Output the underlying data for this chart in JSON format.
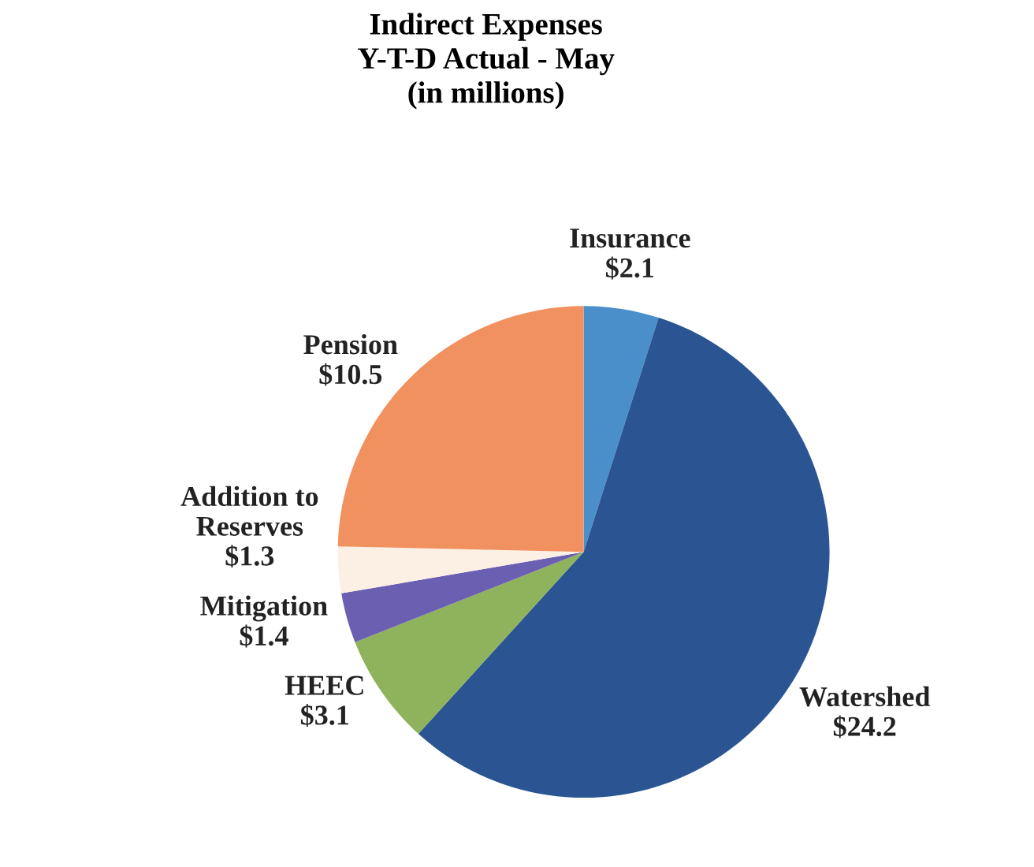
{
  "chart_data": {
    "type": "pie",
    "title": "Indirect Expenses\nY-T-D Actual - May\n(in millions)",
    "categories": [
      "Insurance",
      "Watershed",
      "HEEC",
      "Mitigation",
      "Addition to\nReserves",
      "Pension"
    ],
    "values": [
      2.1,
      24.2,
      3.1,
      1.4,
      1.3,
      10.5
    ],
    "value_labels": [
      "$2.1",
      "$24.2",
      "$3.1",
      "$1.4",
      "$1.3",
      "$10.5"
    ],
    "colors": [
      "#4a8fc9",
      "#2b5592",
      "#8fb35c",
      "#6b5fb2",
      "#fcefe4",
      "#f29160"
    ],
    "legend": false
  }
}
